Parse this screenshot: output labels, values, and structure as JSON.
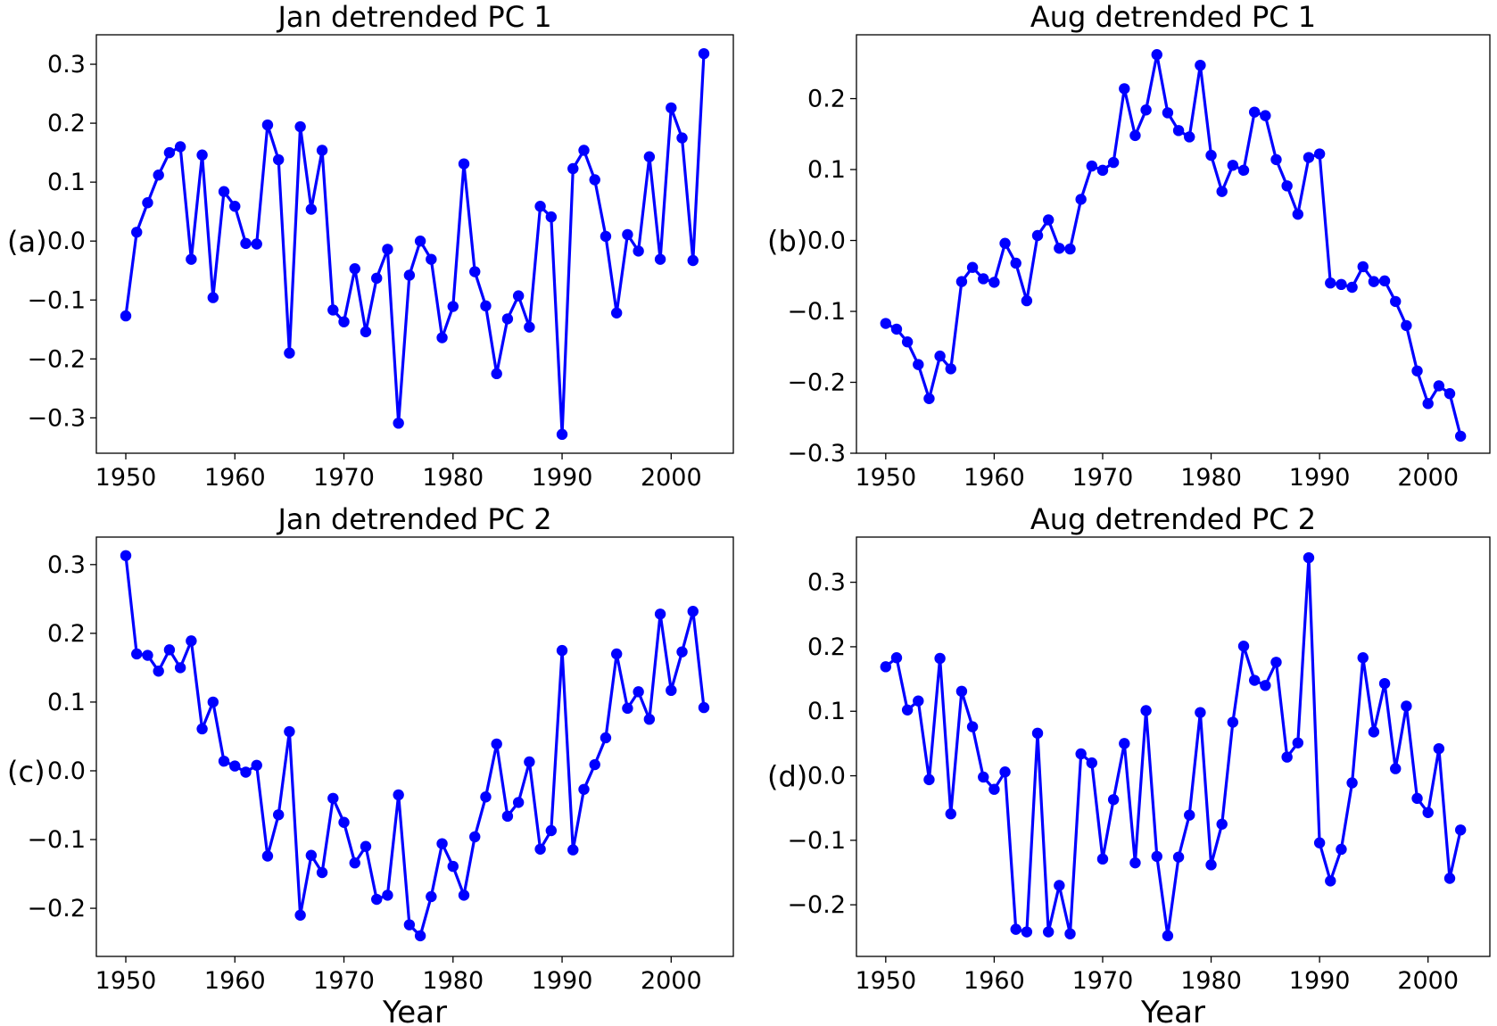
{
  "figure": {
    "series_color": "#0000ff"
  },
  "chart_data": [
    {
      "type": "line",
      "panel_label": "(a)",
      "title": "Jan detrended PC 1",
      "xlabel": "",
      "ylabel": "",
      "xlim": [
        1947.3,
        2005.7
      ],
      "ylim": [
        -0.36,
        0.35
      ],
      "xticks": [
        1950,
        1960,
        1970,
        1980,
        1990,
        2000
      ],
      "xtick_labels": [
        "1950",
        "1960",
        "1970",
        "1980",
        "1990",
        "2000"
      ],
      "yticks": [
        -0.3,
        -0.2,
        -0.1,
        0.0,
        0.1,
        0.2,
        0.3
      ],
      "ytick_labels": [
        "−0.3",
        "−0.2",
        "−0.1",
        "0.0",
        "0.1",
        "0.2",
        "0.3"
      ],
      "grid": false,
      "x": [
        1950,
        1951,
        1952,
        1953,
        1954,
        1955,
        1956,
        1957,
        1958,
        1959,
        1960,
        1961,
        1962,
        1963,
        1964,
        1965,
        1966,
        1967,
        1968,
        1969,
        1970,
        1971,
        1972,
        1973,
        1974,
        1975,
        1976,
        1977,
        1978,
        1979,
        1980,
        1981,
        1982,
        1983,
        1984,
        1985,
        1986,
        1987,
        1988,
        1989,
        1990,
        1991,
        1992,
        1993,
        1994,
        1995,
        1996,
        1997,
        1998,
        1999,
        2000,
        2001,
        2002,
        2003
      ],
      "y": [
        -0.127,
        0.015,
        0.065,
        0.112,
        0.15,
        0.16,
        -0.031,
        0.146,
        -0.096,
        0.084,
        0.059,
        -0.004,
        -0.005,
        0.197,
        0.138,
        -0.19,
        0.194,
        0.054,
        0.154,
        -0.117,
        -0.137,
        -0.047,
        -0.154,
        -0.063,
        -0.014,
        -0.309,
        -0.058,
        0.0,
        -0.031,
        -0.164,
        -0.111,
        0.131,
        -0.052,
        -0.11,
        -0.225,
        -0.132,
        -0.093,
        -0.146,
        0.059,
        0.041,
        -0.328,
        0.123,
        0.154,
        0.104,
        0.008,
        -0.122,
        0.011,
        -0.017,
        0.143,
        -0.031,
        0.226,
        0.175,
        -0.033,
        0.318
      ]
    },
    {
      "type": "line",
      "panel_label": "(b)",
      "title": "Aug detrended PC 1",
      "xlabel": "",
      "ylabel": "",
      "xlim": [
        1947.3,
        2005.7
      ],
      "ylim": [
        -0.3,
        0.29
      ],
      "xticks": [
        1950,
        1960,
        1970,
        1980,
        1990,
        2000
      ],
      "xtick_labels": [
        "1950",
        "1960",
        "1970",
        "1980",
        "1990",
        "2000"
      ],
      "yticks": [
        -0.3,
        -0.2,
        -0.1,
        0.0,
        0.1,
        0.2
      ],
      "ytick_labels": [
        "−0.3",
        "−0.2",
        "−0.1",
        "0.0",
        "0.1",
        "0.2"
      ],
      "grid": false,
      "x": [
        1950,
        1951,
        1952,
        1953,
        1954,
        1955,
        1956,
        1957,
        1958,
        1959,
        1960,
        1961,
        1962,
        1963,
        1964,
        1965,
        1966,
        1967,
        1968,
        1969,
        1970,
        1971,
        1972,
        1973,
        1974,
        1975,
        1976,
        1977,
        1978,
        1979,
        1980,
        1981,
        1982,
        1983,
        1984,
        1985,
        1986,
        1987,
        1988,
        1989,
        1990,
        1991,
        1992,
        1993,
        1994,
        1995,
        1996,
        1997,
        1998,
        1999,
        2000,
        2001,
        2002,
        2003
      ],
      "y": [
        -0.117,
        -0.125,
        -0.143,
        -0.175,
        -0.223,
        -0.163,
        -0.181,
        -0.058,
        -0.038,
        -0.054,
        -0.059,
        -0.004,
        -0.032,
        -0.085,
        0.007,
        0.029,
        -0.011,
        -0.012,
        0.058,
        0.105,
        0.099,
        0.11,
        0.214,
        0.148,
        0.184,
        0.262,
        0.18,
        0.155,
        0.146,
        0.247,
        0.12,
        0.069,
        0.106,
        0.099,
        0.181,
        0.176,
        0.114,
        0.077,
        0.037,
        0.117,
        0.122,
        -0.06,
        -0.062,
        -0.066,
        -0.037,
        -0.058,
        -0.057,
        -0.086,
        -0.12,
        -0.184,
        -0.23,
        -0.205,
        -0.216,
        -0.276
      ]
    },
    {
      "type": "line",
      "panel_label": "(c)",
      "title": "Jan detrended PC 2",
      "xlabel": "Year",
      "ylabel": "",
      "xlim": [
        1947.3,
        2005.7
      ],
      "ylim": [
        -0.27,
        0.34
      ],
      "xticks": [
        1950,
        1960,
        1970,
        1980,
        1990,
        2000
      ],
      "xtick_labels": [
        "1950",
        "1960",
        "1970",
        "1980",
        "1990",
        "2000"
      ],
      "yticks": [
        -0.2,
        -0.1,
        0.0,
        0.1,
        0.2,
        0.3
      ],
      "ytick_labels": [
        "−0.2",
        "−0.1",
        "0.0",
        "0.1",
        "0.2",
        "0.3"
      ],
      "grid": false,
      "x": [
        1950,
        1951,
        1952,
        1953,
        1954,
        1955,
        1956,
        1957,
        1958,
        1959,
        1960,
        1961,
        1962,
        1963,
        1964,
        1965,
        1966,
        1967,
        1968,
        1969,
        1970,
        1971,
        1972,
        1973,
        1974,
        1975,
        1976,
        1977,
        1978,
        1979,
        1980,
        1981,
        1982,
        1983,
        1984,
        1985,
        1986,
        1987,
        1988,
        1989,
        1990,
        1991,
        1992,
        1993,
        1994,
        1995,
        1996,
        1997,
        1998,
        1999,
        2000,
        2001,
        2002,
        2003
      ],
      "y": [
        0.313,
        0.17,
        0.168,
        0.145,
        0.176,
        0.15,
        0.189,
        0.061,
        0.1,
        0.014,
        0.007,
        -0.002,
        0.008,
        -0.124,
        -0.064,
        0.057,
        -0.21,
        -0.123,
        -0.148,
        -0.04,
        -0.075,
        -0.134,
        -0.11,
        -0.187,
        -0.181,
        -0.035,
        -0.224,
        -0.24,
        -0.183,
        -0.106,
        -0.139,
        -0.181,
        -0.096,
        -0.038,
        0.039,
        -0.066,
        -0.046,
        0.013,
        -0.114,
        -0.087,
        0.175,
        -0.115,
        -0.027,
        0.009,
        0.048,
        0.17,
        0.091,
        0.115,
        0.075,
        0.228,
        0.117,
        0.173,
        0.232,
        0.092
      ]
    },
    {
      "type": "line",
      "panel_label": "(d)",
      "title": "Aug detrended PC 2",
      "xlabel": "Year",
      "ylabel": "",
      "xlim": [
        1947.3,
        2005.7
      ],
      "ylim": [
        -0.28,
        0.37
      ],
      "xticks": [
        1950,
        1960,
        1970,
        1980,
        1990,
        2000
      ],
      "xtick_labels": [
        "1950",
        "1960",
        "1970",
        "1980",
        "1990",
        "2000"
      ],
      "yticks": [
        -0.2,
        -0.1,
        0.0,
        0.1,
        0.2,
        0.3
      ],
      "ytick_labels": [
        "−0.2",
        "−0.1",
        "0.0",
        "0.1",
        "0.2",
        "0.3"
      ],
      "grid": false,
      "x": [
        1950,
        1951,
        1952,
        1953,
        1954,
        1955,
        1956,
        1957,
        1958,
        1959,
        1960,
        1961,
        1962,
        1963,
        1964,
        1965,
        1966,
        1967,
        1968,
        1969,
        1970,
        1971,
        1972,
        1973,
        1974,
        1975,
        1976,
        1977,
        1978,
        1979,
        1980,
        1981,
        1982,
        1983,
        1984,
        1985,
        1986,
        1987,
        1988,
        1989,
        1990,
        1991,
        1992,
        1993,
        1994,
        1995,
        1996,
        1997,
        1998,
        1999,
        2000,
        2001,
        2002,
        2003
      ],
      "y": [
        0.169,
        0.183,
        0.102,
        0.116,
        -0.006,
        0.182,
        -0.059,
        0.131,
        0.076,
        -0.002,
        -0.021,
        0.006,
        -0.238,
        -0.242,
        0.066,
        -0.242,
        -0.17,
        -0.245,
        0.034,
        0.02,
        -0.129,
        -0.037,
        0.05,
        -0.135,
        0.101,
        -0.125,
        -0.248,
        -0.126,
        -0.061,
        0.098,
        -0.138,
        -0.075,
        0.083,
        0.201,
        0.148,
        0.14,
        0.176,
        0.029,
        0.051,
        0.338,
        -0.104,
        -0.163,
        -0.114,
        -0.011,
        0.183,
        0.068,
        0.143,
        0.011,
        0.108,
        -0.035,
        -0.057,
        0.042,
        -0.159,
        -0.084
      ]
    }
  ]
}
